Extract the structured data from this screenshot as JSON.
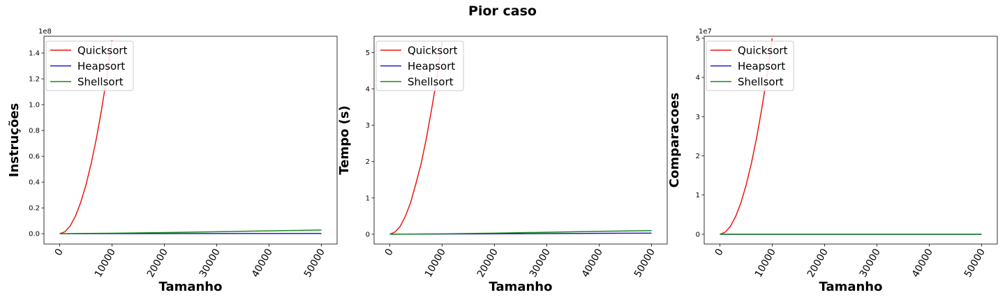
{
  "figure": {
    "suptitle": "Pior caso"
  },
  "colors": {
    "quicksort": "#e8180f",
    "heapsort": "#1c1ccc",
    "shellsort": "#1a8a1a"
  },
  "chart_data": [
    {
      "type": "line",
      "title": "",
      "xlabel": "Tamanho",
      "ylabel": "Instruções",
      "y_multiplier": "1e8",
      "xlim": [
        -3000,
        53000
      ],
      "ylim": [
        -0.08,
        1.53
      ],
      "xticks": [
        0,
        10000,
        20000,
        30000,
        40000,
        50000
      ],
      "xtick_labels": [
        "0",
        "10000",
        "20000",
        "30000",
        "40000",
        "50000"
      ],
      "yticks": [
        0.0,
        0.2,
        0.4,
        0.6,
        0.8,
        1.0,
        1.2,
        1.4
      ],
      "ytick_labels": [
        "0.0",
        "0.2",
        "0.4",
        "0.6",
        "0.8",
        "1.0",
        "1.2",
        "1.4"
      ],
      "legend": {
        "position": "top-left",
        "entries": [
          "Quicksort",
          "Heapsort",
          "Shellsort"
        ]
      },
      "series": [
        {
          "name": "Quicksort",
          "color_key": "quicksort",
          "x": [
            0,
            1000,
            2000,
            3000,
            4000,
            5000,
            6000,
            7000,
            8000,
            9000,
            10000
          ],
          "values": [
            0.0,
            0.015,
            0.06,
            0.135,
            0.24,
            0.375,
            0.54,
            0.735,
            0.96,
            1.215,
            1.5
          ]
        },
        {
          "name": "Heapsort",
          "color_key": "heapsort",
          "x": [
            0,
            50000
          ],
          "values": [
            0.0,
            0.002
          ]
        },
        {
          "name": "Shellsort",
          "color_key": "shellsort",
          "x": [
            0,
            10000,
            20000,
            30000,
            40000,
            50000
          ],
          "values": [
            0.0,
            0.004,
            0.009,
            0.015,
            0.022,
            0.029
          ]
        }
      ]
    },
    {
      "type": "line",
      "title": "",
      "xlabel": "Tamanho",
      "ylabel": "Tempo (s)",
      "y_multiplier": "",
      "xlim": [
        -3000,
        53000
      ],
      "ylim": [
        -0.27,
        5.45
      ],
      "xticks": [
        0,
        10000,
        20000,
        30000,
        40000,
        50000
      ],
      "xtick_labels": [
        "0",
        "10000",
        "20000",
        "30000",
        "40000",
        "50000"
      ],
      "yticks": [
        0,
        1,
        2,
        3,
        4,
        5
      ],
      "ytick_labels": [
        "0",
        "1",
        "2",
        "3",
        "4",
        "5"
      ],
      "legend": {
        "position": "top-left",
        "entries": [
          "Quicksort",
          "Heapsort",
          "Shellsort"
        ]
      },
      "series": [
        {
          "name": "Quicksort",
          "color_key": "quicksort",
          "x": [
            0,
            1000,
            2000,
            3000,
            4000,
            5000,
            6000,
            7000,
            8000,
            9000,
            10000
          ],
          "values": [
            0.0,
            0.06,
            0.22,
            0.5,
            0.88,
            1.4,
            1.95,
            2.65,
            3.45,
            4.3,
            5.3
          ]
        },
        {
          "name": "Heapsort",
          "color_key": "heapsort",
          "x": [
            0,
            50000
          ],
          "values": [
            0.0,
            0.03
          ]
        },
        {
          "name": "Shellsort",
          "color_key": "shellsort",
          "x": [
            0,
            10000,
            20000,
            30000,
            40000,
            50000
          ],
          "values": [
            0.0,
            0.01,
            0.03,
            0.055,
            0.08,
            0.1
          ]
        }
      ]
    },
    {
      "type": "line",
      "title": "",
      "xlabel": "Tamanho",
      "ylabel": "Comparacoes",
      "y_multiplier": "1e7",
      "xlim": [
        -3000,
        53000
      ],
      "ylim": [
        -0.25,
        5.05
      ],
      "xticks": [
        0,
        10000,
        20000,
        30000,
        40000,
        50000
      ],
      "xtick_labels": [
        "0",
        "10000",
        "20000",
        "30000",
        "40000",
        "50000"
      ],
      "yticks": [
        0,
        1,
        2,
        3,
        4,
        5
      ],
      "ytick_labels": [
        "0",
        "1",
        "2",
        "3",
        "4",
        "5"
      ],
      "legend": {
        "position": "top-left",
        "entries": [
          "Quicksort",
          "Heapsort",
          "Shellsort"
        ]
      },
      "series": [
        {
          "name": "Quicksort",
          "color_key": "quicksort",
          "x": [
            0,
            1000,
            2000,
            3000,
            4000,
            5000,
            6000,
            7000,
            8000,
            9000,
            10000
          ],
          "values": [
            0.0,
            0.05,
            0.2,
            0.45,
            0.8,
            1.25,
            1.8,
            2.45,
            3.2,
            4.05,
            5.0
          ]
        },
        {
          "name": "Heapsort",
          "color_key": "heapsort",
          "x": [
            0,
            50000
          ],
          "values": [
            0.0,
            0.0
          ]
        },
        {
          "name": "Shellsort",
          "color_key": "shellsort",
          "x": [
            0,
            50000
          ],
          "values": [
            0.0,
            0.0
          ]
        }
      ]
    }
  ]
}
